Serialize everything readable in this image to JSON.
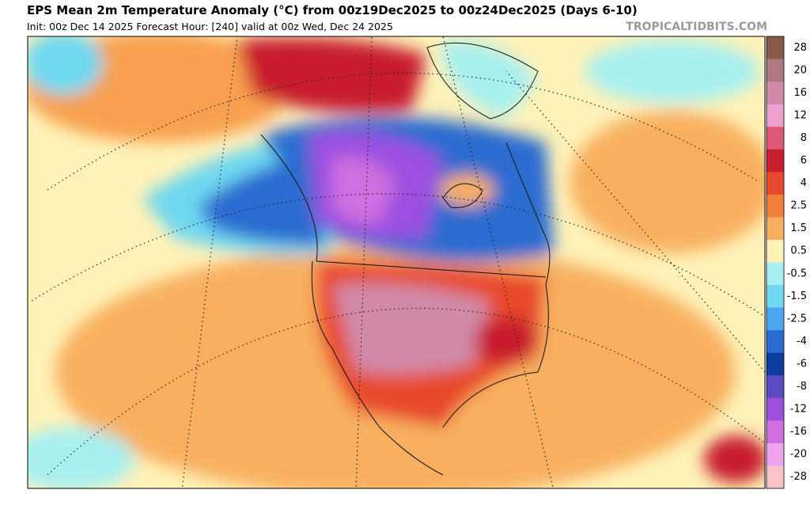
{
  "header": {
    "title": "EPS Mean 2m Temperature Anomaly (°C) from 00z19Dec2025 to 00z24Dec2025 (Days 6-10)",
    "subtitle": "Init: 00z Dec 14 2025   Forecast Hour: [240]   valid at 00z Wed, Dec 24 2025",
    "watermark": "TROPICALTIDBITS.COM"
  },
  "colorbar": {
    "labels": [
      28,
      20,
      16,
      12,
      8,
      6,
      4,
      2.5,
      1.5,
      0.5,
      -0.5,
      -1.5,
      -2.5,
      -4,
      -6,
      -8,
      -12,
      -16,
      -20,
      -28
    ],
    "colors": [
      "#8a5a48",
      "#b07880",
      "#d08aa8",
      "#f0a0d0",
      "#e05878",
      "#c81e2e",
      "#e8482c",
      "#f27e3c",
      "#f8b060",
      "#fff2b8",
      "#a8f0f0",
      "#70d8f0",
      "#4aa6ee",
      "#2a6cd0",
      "#0e3c9c",
      "#5a4cc0",
      "#9c50e0",
      "#d070e0",
      "#eea4ee",
      "#f8c4c8"
    ]
  }
}
